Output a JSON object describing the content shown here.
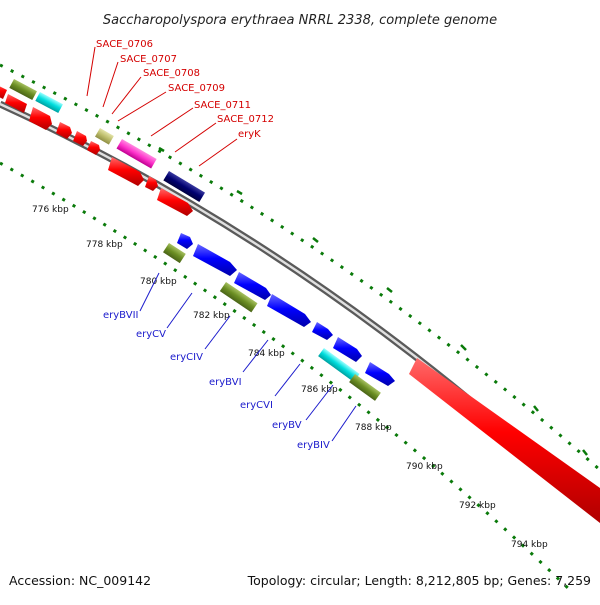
{
  "title": "Saccharopolyspora erythraea NRRL 2338, complete genome",
  "footer": {
    "accession": "Accession: NC_009142",
    "topology": "Topology: circular; Length: 8,212,805 bp; Genes: 7,259"
  },
  "colors": {
    "backbone": "#808080",
    "tick_green": "#0a7a0a",
    "red_label": "#d40000",
    "blue_label": "#1a1acc"
  },
  "scale_labels": [
    "776 kbp",
    "778 kbp",
    "780 kbp",
    "782 kbp",
    "784 kbp",
    "786 kbp",
    "788 kbp",
    "790 kbp",
    "792 kbp",
    "794 kbp"
  ],
  "top_labels": [
    "SACE_0706",
    "SACE_0707",
    "SACE_0708",
    "SACE_0709",
    "SACE_0711",
    "SACE_0712",
    "eryK"
  ],
  "bottom_labels": [
    "eryBVII",
    "eryCV",
    "eryCIV",
    "eryBVI",
    "eryCVI",
    "eryBV",
    "eryBIV"
  ]
}
